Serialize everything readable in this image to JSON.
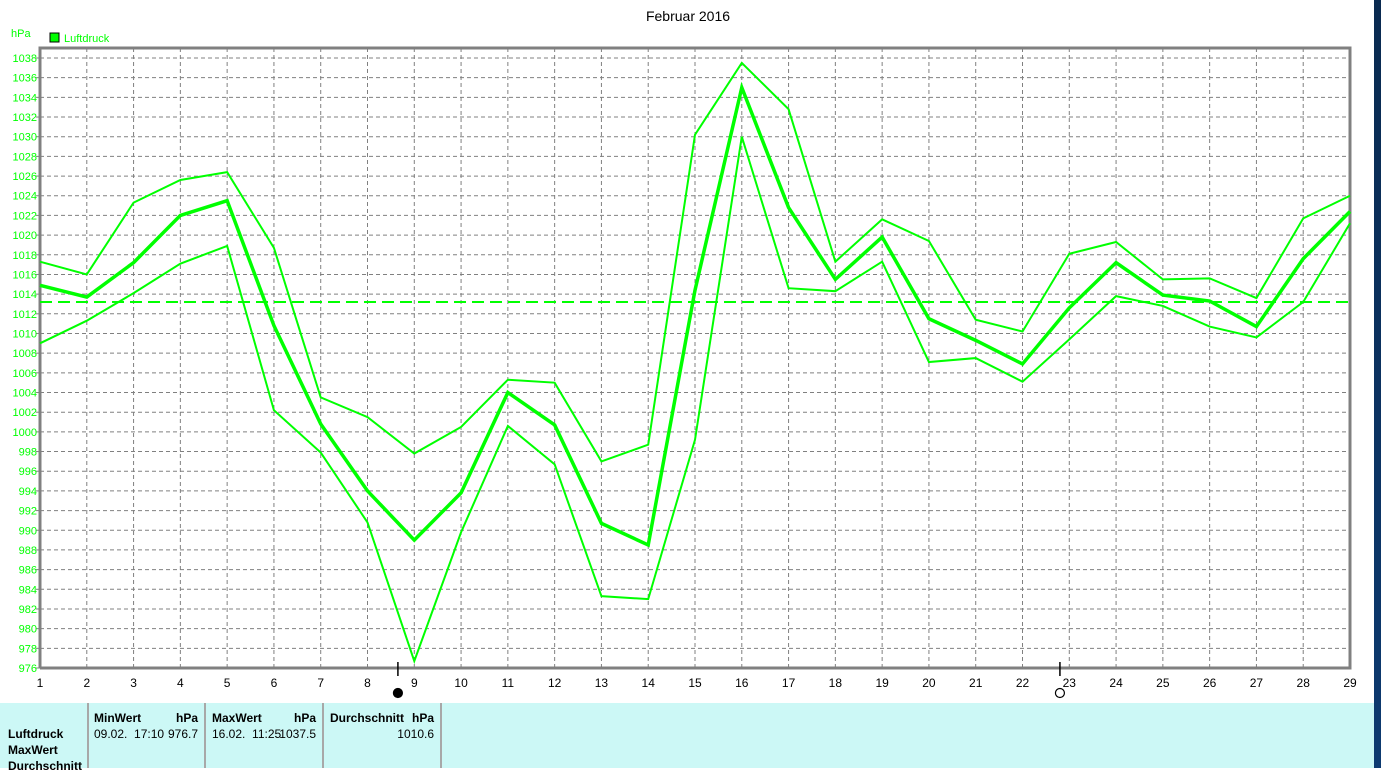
{
  "chart_data": {
    "type": "line",
    "title": "Februar 2016",
    "ylabel": "hPa",
    "legend": [
      {
        "label": "Luftdruck",
        "color": "#00ff00"
      }
    ],
    "legend_placement": "top-left",
    "grid": true,
    "xlim": [
      1,
      29
    ],
    "ylim": [
      976,
      1038
    ],
    "x": [
      1,
      2,
      3,
      4,
      5,
      6,
      7,
      8,
      9,
      10,
      11,
      12,
      13,
      14,
      15,
      16,
      17,
      18,
      19,
      20,
      21,
      22,
      23,
      24,
      25,
      26,
      27,
      28,
      29
    ],
    "x_ticks": [
      "1",
      "2",
      "3",
      "4",
      "5",
      "6",
      "7",
      "8",
      "9",
      "10",
      "11",
      "12",
      "13",
      "14",
      "15",
      "16",
      "17",
      "18",
      "19",
      "20",
      "21",
      "22",
      "23",
      "24",
      "25",
      "26",
      "27",
      "28",
      "29"
    ],
    "y_ticks": [
      976,
      978,
      980,
      982,
      984,
      986,
      988,
      990,
      992,
      994,
      996,
      998,
      1000,
      1002,
      1004,
      1006,
      1008,
      1010,
      1012,
      1014,
      1016,
      1018,
      1020,
      1022,
      1024,
      1026,
      1028,
      1030,
      1032,
      1034,
      1036,
      1038
    ],
    "series": [
      {
        "role": "max",
        "values": [
          1017.3,
          1016,
          1023.3,
          1025.6,
          1026.4,
          1018.7,
          1003.5,
          1001.5,
          997.8,
          1000.5,
          1005.3,
          1005,
          997,
          998.7,
          1030.2,
          1037.5,
          1032.8,
          1017.3,
          1021.6,
          1019.4,
          1011.4,
          1010.2,
          1018.1,
          1019.3,
          1015.5,
          1015.6,
          1013.6,
          1021.7,
          1024
        ]
      },
      {
        "role": "mean",
        "values": [
          1014.9,
          1013.7,
          1017.2,
          1022,
          1023.5,
          1010.8,
          1000.8,
          994,
          989,
          993.8,
          1004,
          1000.7,
          990.7,
          988.5,
          1014.4,
          1035,
          1022.8,
          1015.5,
          1019.8,
          1011.5,
          1009.3,
          1006.9,
          1012.6,
          1017.2,
          1013.9,
          1013.3,
          1010.7,
          1017.6,
          1022.4
        ]
      },
      {
        "role": "min",
        "values": [
          1009,
          1011.3,
          1014.1,
          1017.1,
          1018.9,
          1002.2,
          997.9,
          990.8,
          976.7,
          989.8,
          1000.6,
          996.7,
          983.3,
          983,
          999.2,
          1030,
          1014.6,
          1014.3,
          1017.3,
          1007.1,
          1007.5,
          1005.1,
          1009.4,
          1013.8,
          1012.8,
          1010.7,
          1009.6,
          1013.2,
          1021.2
        ]
      }
    ],
    "reference_line": 1013.2,
    "moon_phases": [
      {
        "x": 8.65,
        "phase": "new-moon"
      },
      {
        "x": 22.8,
        "phase": "full-moon"
      }
    ],
    "colors": {
      "series": "#00ff00",
      "grid": "#808080",
      "axis_labels": "#00ff00"
    }
  },
  "table": {
    "row_labels": [
      "Luftdruck",
      "MaxWert",
      "Durchschnitt"
    ],
    "min": {
      "header": "MinWert",
      "unit": "hPa",
      "time": "09.02.  17:10",
      "value": "976.7"
    },
    "max": {
      "header": "MaxWert",
      "unit": "hPa",
      "time": "16.02.  11:25",
      "value": "1037.5"
    },
    "avg": {
      "header": "Durchschnitt",
      "unit": "hPa",
      "value": "1010.6"
    }
  }
}
